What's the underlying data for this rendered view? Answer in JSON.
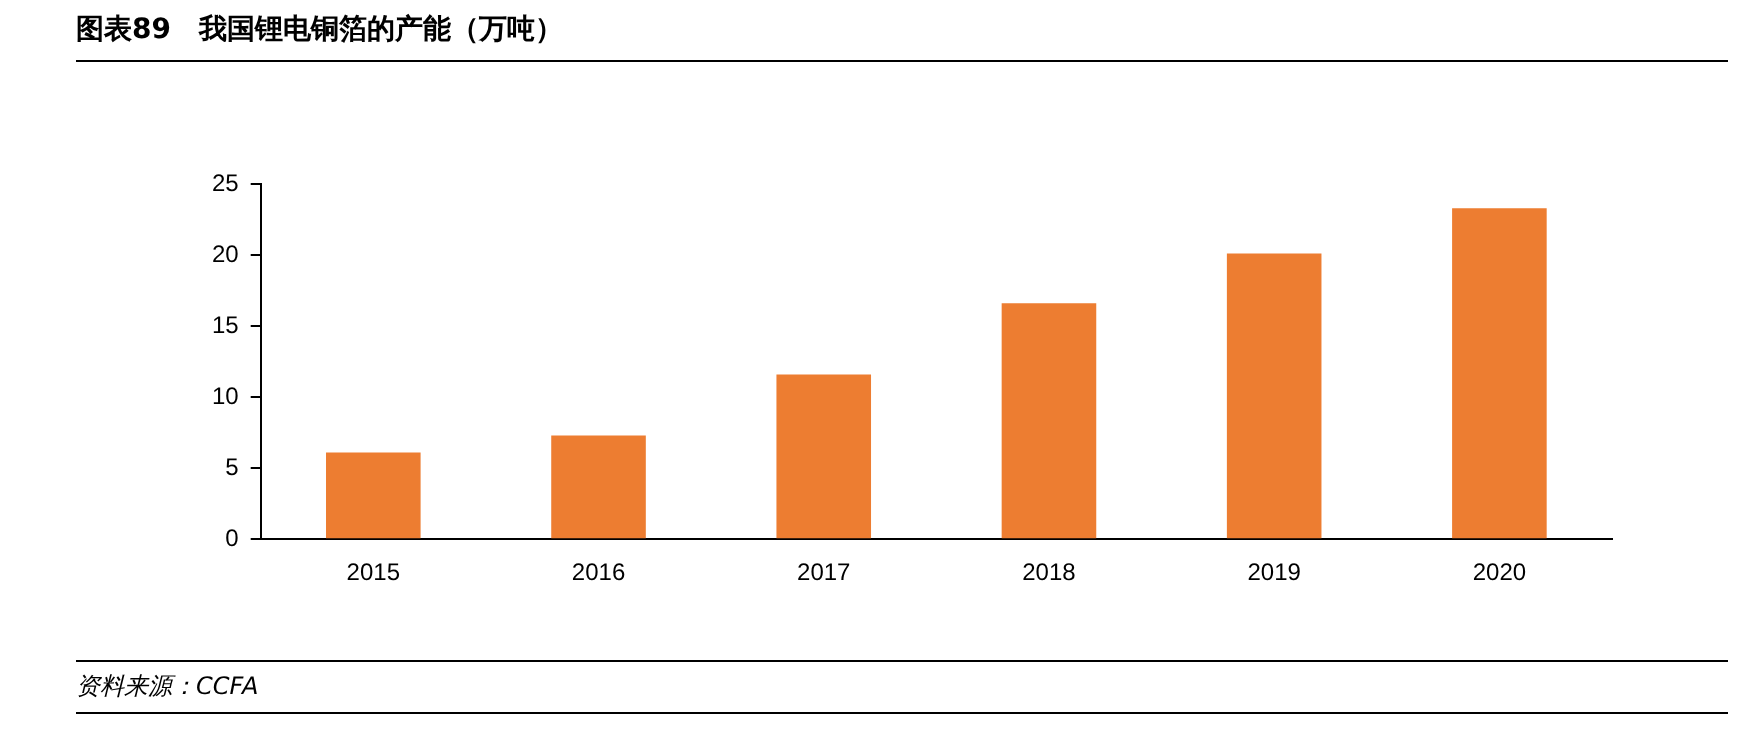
{
  "chart_data": {
    "type": "bar",
    "title": "图表89　我国锂电铜箔的产能（万吨）",
    "categories": [
      "2015",
      "2016",
      "2017",
      "2018",
      "2019",
      "2020"
    ],
    "values": [
      6.1,
      7.3,
      11.6,
      16.6,
      20.1,
      23.3
    ],
    "color": "#ed7d31",
    "ylim": [
      0,
      25
    ],
    "yticks": [
      0,
      5,
      10,
      15,
      20,
      25
    ],
    "grid": false,
    "legend": false,
    "annotations": [
      "资料来源：CCFA"
    ]
  }
}
